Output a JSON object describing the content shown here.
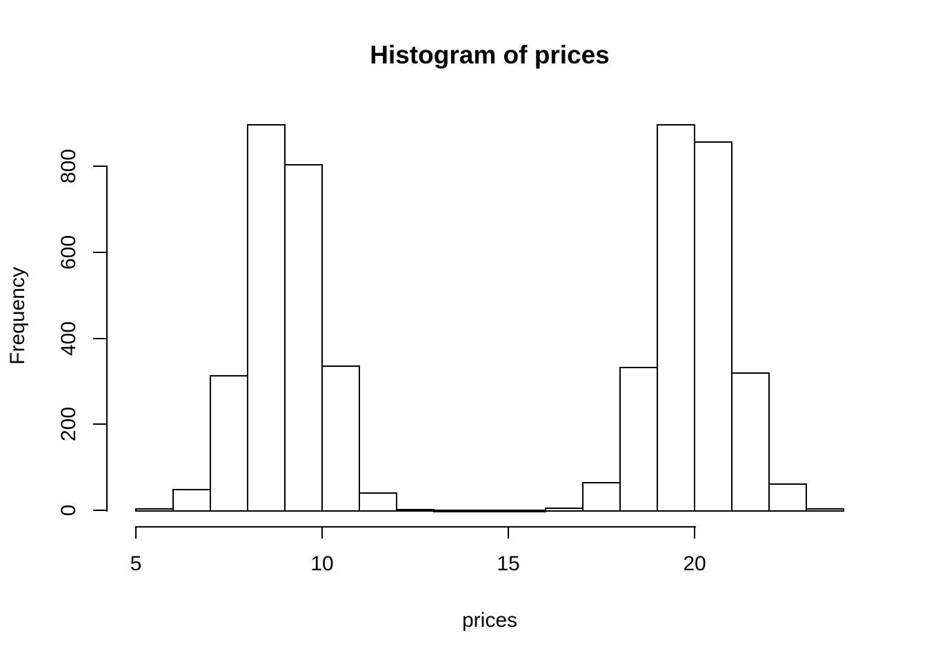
{
  "chart_data": {
    "type": "bar",
    "subtype": "histogram",
    "title": "Histogram of prices",
    "xlabel": "prices",
    "ylabel": "Frequency",
    "bin_edges": [
      5,
      6,
      7,
      8,
      9,
      10,
      11,
      12,
      13,
      14,
      15,
      16,
      17,
      18,
      19,
      20,
      21,
      22,
      23,
      24
    ],
    "counts": [
      5,
      50,
      314,
      897,
      805,
      336,
      42,
      3,
      1,
      1,
      1,
      6,
      65,
      334,
      898,
      857,
      320,
      63,
      5
    ],
    "x_tick_values": [
      5,
      10,
      15,
      20
    ],
    "x_tick_labels": [
      "5",
      "10",
      "15",
      "20"
    ],
    "y_tick_values": [
      0,
      200,
      400,
      600,
      800
    ],
    "y_tick_labels": [
      "0",
      "200",
      "400",
      "600",
      "800"
    ],
    "xlim": [
      5,
      24
    ],
    "ylim": [
      0,
      800
    ],
    "grid": false,
    "legend": false,
    "bar_fill": "#ffffff",
    "bar_stroke": "#000000",
    "text_color": "#000000",
    "background": "#ffffff"
  }
}
